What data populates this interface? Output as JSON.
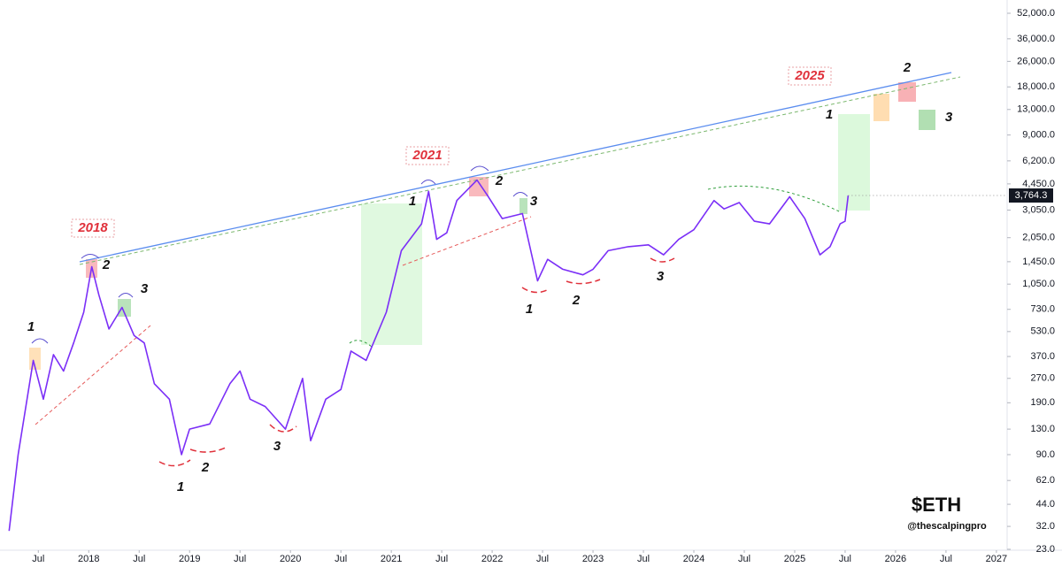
{
  "chart_data": {
    "type": "line",
    "log_scale": true,
    "color": "#7b2ff7",
    "x": [
      2017.21,
      2017.3,
      2017.45,
      2017.55,
      2017.65,
      2017.75,
      2017.85,
      2017.95,
      2018.03,
      2018.1,
      2018.2,
      2018.33,
      2018.45,
      2018.55,
      2018.65,
      2018.8,
      2018.92,
      2019.0,
      2019.2,
      2019.4,
      2019.5,
      2019.6,
      2019.75,
      2019.95,
      2020.12,
      2020.2,
      2020.35,
      2020.5,
      2020.6,
      2020.75,
      2020.95,
      2021.1,
      2021.3,
      2021.37,
      2021.45,
      2021.55,
      2021.65,
      2021.85,
      2021.95,
      2022.1,
      2022.3,
      2022.45,
      2022.55,
      2022.7,
      2022.9,
      2023.0,
      2023.15,
      2023.35,
      2023.55,
      2023.7,
      2023.85,
      2024.0,
      2024.2,
      2024.3,
      2024.45,
      2024.6,
      2024.75,
      2024.95,
      2025.1,
      2025.25,
      2025.35,
      2025.45,
      2025.5,
      2025.53
    ],
    "values": [
      30,
      90,
      350,
      200,
      380,
      300,
      450,
      700,
      1350,
      900,
      550,
      750,
      500,
      450,
      250,
      200,
      90,
      130,
      140,
      250,
      300,
      200,
      180,
      130,
      270,
      110,
      200,
      230,
      400,
      350,
      700,
      1700,
      2500,
      4000,
      2000,
      2200,
      3500,
      4700,
      3800,
      2700,
      2900,
      1100,
      1500,
      1300,
      1200,
      1300,
      1700,
      1800,
      1850,
      1600,
      2000,
      2300,
      3500,
      3100,
      3400,
      2600,
      2500,
      3700,
      2700,
      1600,
      1800,
      2500,
      2600,
      3764.3
    ],
    "last_value_label": "3,764.3",
    "xlim": [
      2017.12,
      2027.08
    ],
    "ylim": [
      23,
      52000
    ],
    "xticks": [
      {
        "value": 2017.5,
        "label": "Jul"
      },
      2018,
      {
        "value": 2018.5,
        "label": "Jul"
      },
      2019,
      {
        "value": 2019.5,
        "label": "Jul"
      },
      2020,
      {
        "value": 2020.5,
        "label": "Jul"
      },
      2021,
      {
        "value": 2021.5,
        "label": "Jul"
      },
      2022,
      {
        "value": 2022.5,
        "label": "Jul"
      },
      2023,
      {
        "value": 2023.5,
        "label": "Jul"
      },
      2024,
      {
        "value": 2024.5,
        "label": "Jul"
      },
      2025,
      {
        "value": 2025.5,
        "label": "Jul"
      },
      2026,
      {
        "value": 2026.5,
        "label": "Jul"
      },
      2027
    ],
    "yticks": [
      {
        "value": 52000,
        "label": "52,000.0"
      },
      {
        "value": 36000,
        "label": "36,000.0"
      },
      {
        "value": 26000,
        "label": "26,000.0"
      },
      {
        "value": 18000,
        "label": "18,000.0"
      },
      {
        "value": 13000,
        "label": "13,000.0"
      },
      {
        "value": 9000,
        "label": "9,000.0"
      },
      {
        "value": 6200,
        "label": "6,200.0"
      },
      {
        "value": 4450,
        "label": "4,450.0"
      },
      {
        "value": 3050,
        "label": "3,050.0"
      },
      {
        "value": 2050,
        "label": "2,050.0"
      },
      {
        "value": 1450,
        "label": "1,450.0"
      },
      {
        "value": 1050,
        "label": "1,050.0"
      },
      {
        "value": 730,
        "label": "730.0"
      },
      {
        "value": 530,
        "label": "530.0"
      },
      {
        "value": 370,
        "label": "370.0"
      },
      {
        "value": 270,
        "label": "270.0"
      },
      {
        "value": 190,
        "label": "190.0"
      },
      {
        "value": 130,
        "label": "130.0"
      },
      {
        "value": 90,
        "label": "90.0"
      },
      {
        "value": 62,
        "label": "62.0"
      },
      {
        "value": 44,
        "label": "44.0"
      },
      {
        "value": 32,
        "label": "32.0"
      },
      {
        "value": 23,
        "label": "23.0"
      }
    ],
    "grid": false,
    "wave_labels": [
      "1",
      "2",
      "3",
      "1",
      "2",
      "3",
      "1",
      "2",
      "3",
      "1",
      "2",
      "3",
      "1",
      "2",
      "3"
    ],
    "cycle_labels": [
      "2018",
      "2021",
      "2025"
    ],
    "ticker": "$ETH",
    "author": "@thescalpingpro"
  }
}
